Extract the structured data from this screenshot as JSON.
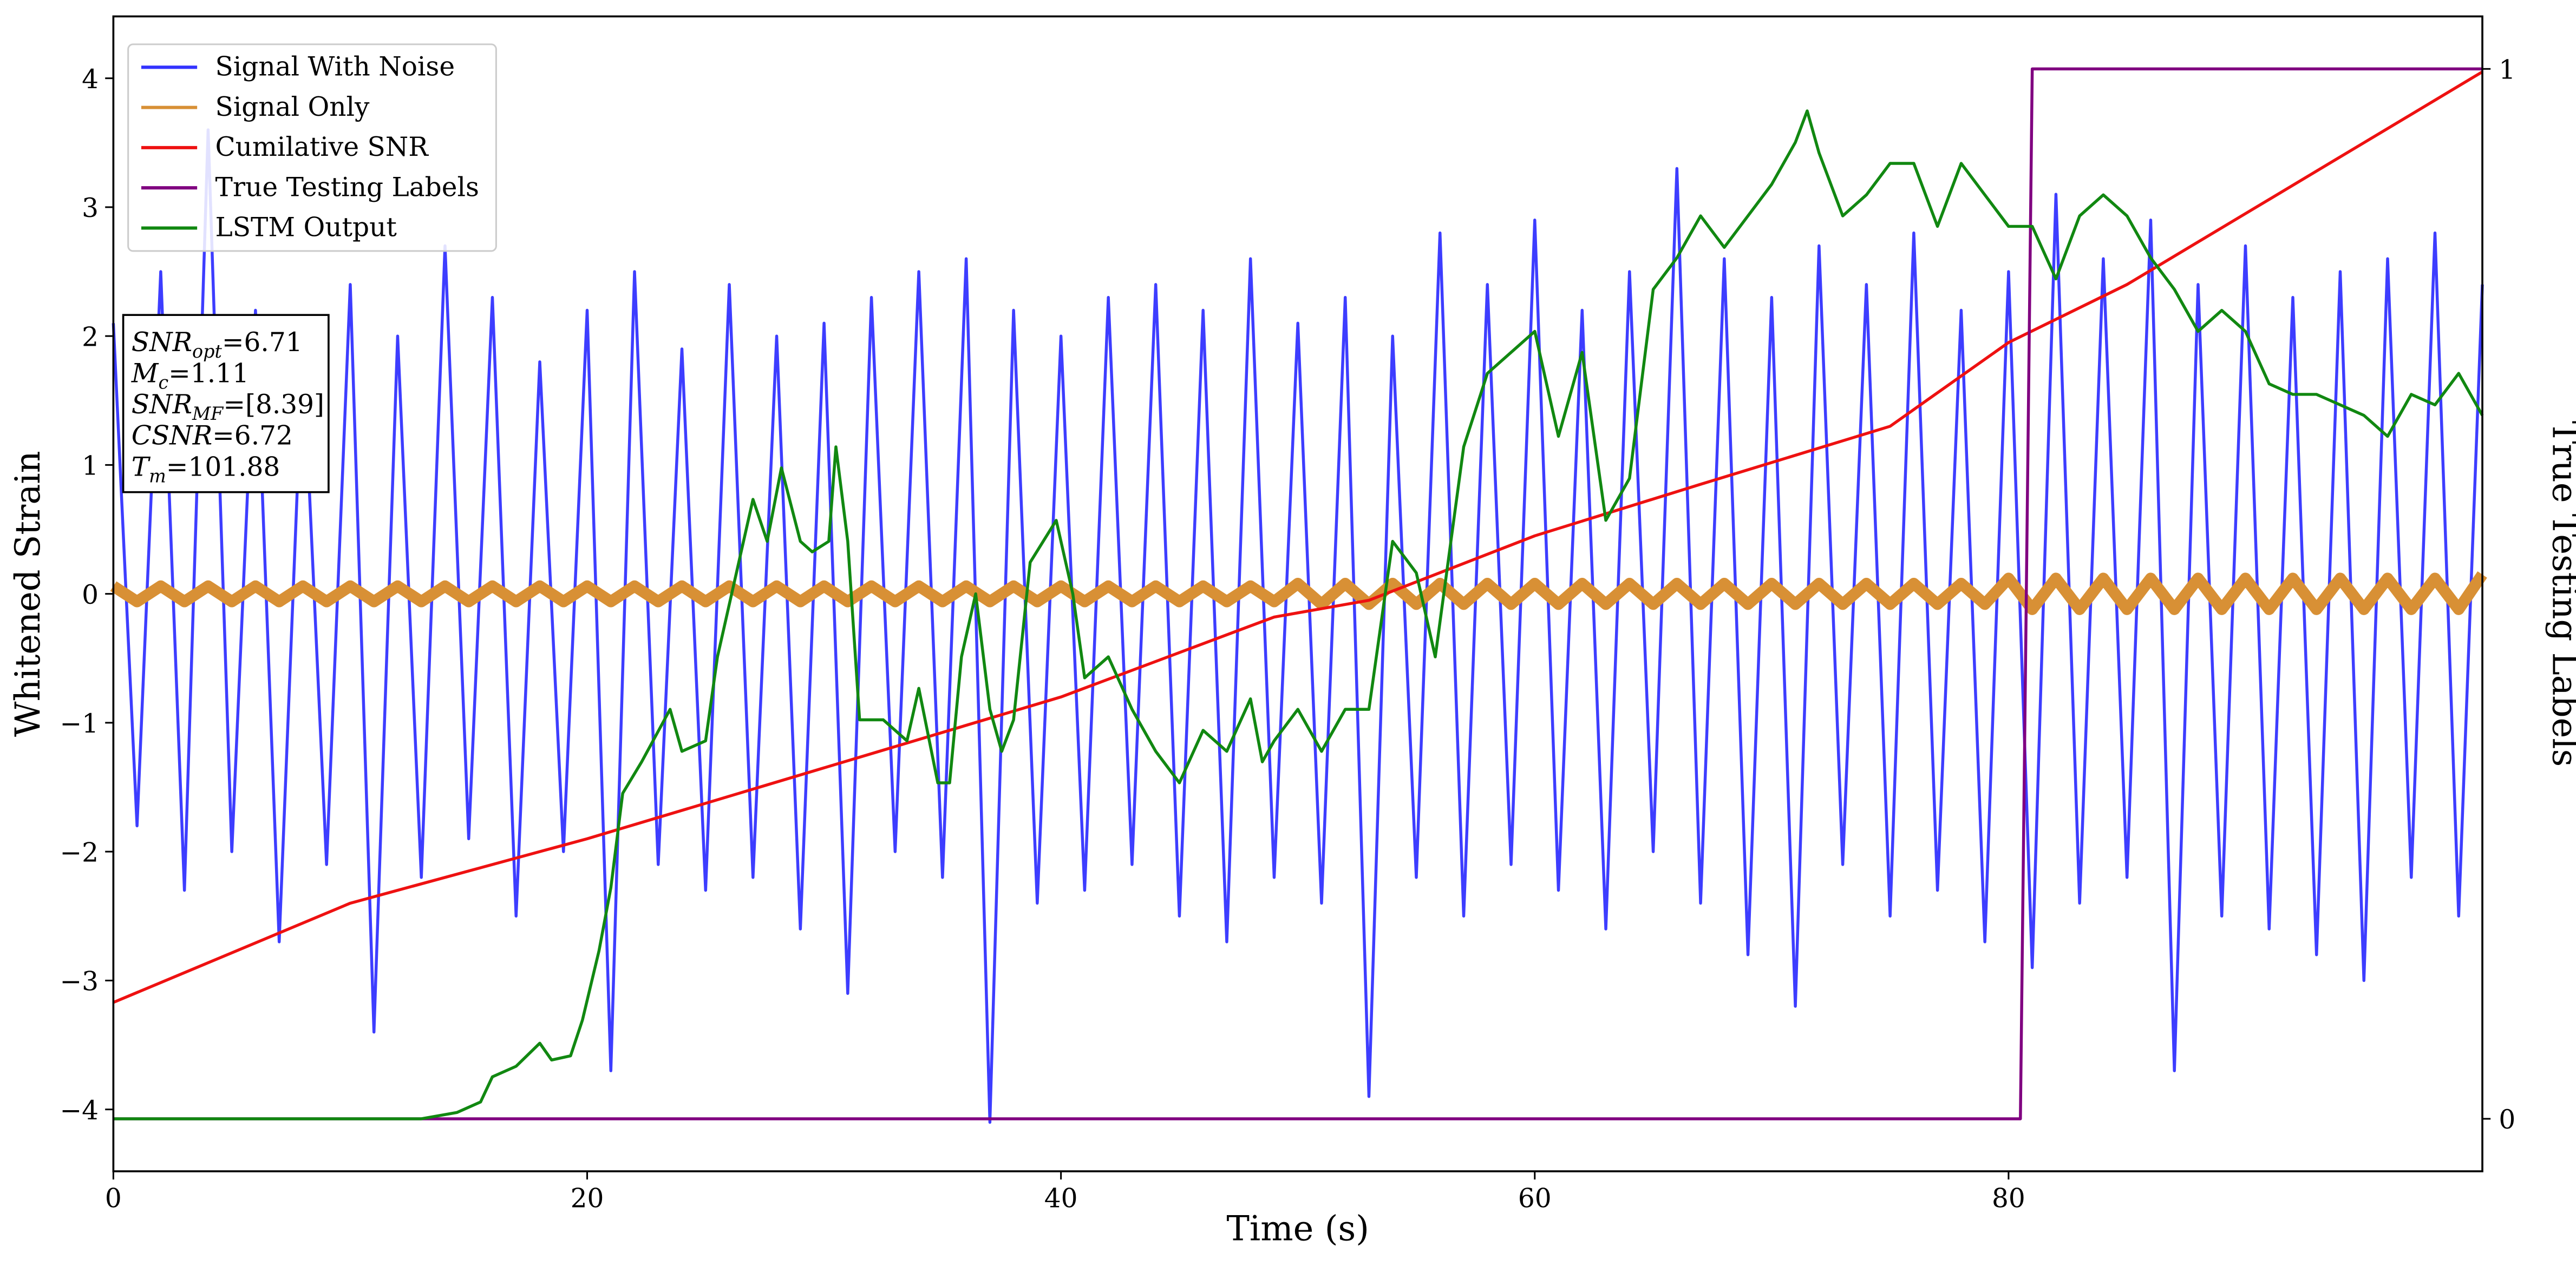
{
  "chart_data": {
    "type": "line",
    "xlabel": "Time (s)",
    "ylabel": "Whitened Strain",
    "y2label": "True Testing Labels",
    "xlim": [
      0,
      100
    ],
    "ylim": [
      -4.48,
      4.48
    ],
    "y2lim": [
      -0.05,
      1.05
    ],
    "xticks": [
      0,
      20,
      40,
      60,
      80
    ],
    "yticks": [
      {
        "value": -4,
        "label": "−4"
      },
      {
        "value": -3,
        "label": "−3"
      },
      {
        "value": -2,
        "label": "−2"
      },
      {
        "value": -1,
        "label": "−1"
      },
      0,
      1,
      2,
      3,
      4
    ],
    "y2ticks": [
      0,
      1
    ],
    "legend": "upper left",
    "series": [
      {
        "name": "Signal With Noise",
        "color": "#3333ff",
        "x": [
          0,
          1,
          2,
          3,
          4,
          5,
          6,
          7,
          8,
          9,
          10,
          11,
          12,
          13,
          14,
          15,
          16,
          17,
          18,
          19,
          20,
          21,
          22,
          23,
          24,
          25,
          26,
          27,
          28,
          29,
          30,
          31,
          32,
          33,
          34,
          35,
          36,
          37,
          38,
          39,
          40,
          41,
          42,
          43,
          44,
          45,
          46,
          47,
          48,
          49,
          50,
          51,
          52,
          53,
          54,
          55,
          56,
          57,
          58,
          59,
          60,
          61,
          62,
          63,
          64,
          65,
          66,
          67,
          68,
          69,
          70,
          71,
          72,
          73,
          74,
          75,
          76,
          77,
          78,
          79,
          80,
          81,
          82,
          83,
          84,
          85,
          86,
          87,
          88,
          89,
          90,
          91,
          92,
          93,
          94,
          95,
          96,
          97,
          98,
          99,
          100
        ],
        "values": [
          2.1,
          -1.8,
          2.5,
          -2.3,
          3.6,
          -2.0,
          2.2,
          -2.7,
          1.9,
          -2.1,
          2.4,
          -3.4,
          2.0,
          -2.2,
          2.7,
          -1.9,
          2.3,
          -2.5,
          1.8,
          -2.0,
          2.2,
          -3.7,
          2.5,
          -2.1,
          1.9,
          -2.3,
          2.4,
          -2.2,
          2.0,
          -2.6,
          2.1,
          -3.1,
          2.3,
          -2.0,
          2.5,
          -2.2,
          2.6,
          -4.1,
          2.2,
          -2.4,
          2.0,
          -2.3,
          2.3,
          -2.1,
          2.4,
          -2.5,
          2.2,
          -2.7,
          2.6,
          -2.2,
          2.1,
          -2.4,
          2.3,
          -3.9,
          2.0,
          -2.2,
          2.8,
          -2.5,
          2.4,
          -2.1,
          2.9,
          -2.3,
          2.2,
          -2.6,
          2.5,
          -2.0,
          3.3,
          -2.4,
          2.6,
          -2.8,
          2.3,
          -3.2,
          2.7,
          -2.1,
          2.4,
          -2.5,
          2.8,
          -2.3,
          2.2,
          -2.7,
          2.5,
          -2.9,
          3.1,
          -2.4,
          2.6,
          -2.2,
          2.9,
          -3.7,
          2.4,
          -2.5,
          2.7,
          -2.6,
          2.3,
          -2.8,
          2.5,
          -3.0,
          2.6,
          -2.2,
          2.8,
          -2.5,
          2.4
        ]
      },
      {
        "name": "Signal Only",
        "color": "#d89035",
        "x": [
          0,
          1,
          2,
          3,
          4,
          5,
          6,
          7,
          8,
          9,
          10,
          11,
          12,
          13,
          14,
          15,
          16,
          17,
          18,
          19,
          20,
          21,
          22,
          23,
          24,
          25,
          26,
          27,
          28,
          29,
          30,
          31,
          32,
          33,
          34,
          35,
          36,
          37,
          38,
          39,
          40,
          41,
          42,
          43,
          44,
          45,
          46,
          47,
          48,
          49,
          50,
          51,
          52,
          53,
          54,
          55,
          56,
          57,
          58,
          59,
          60,
          61,
          62,
          63,
          64,
          65,
          66,
          67,
          68,
          69,
          70,
          71,
          72,
          73,
          74,
          75,
          76,
          77,
          78,
          79,
          80,
          81,
          82,
          83,
          84,
          85,
          86,
          87,
          88,
          89,
          90,
          91,
          92,
          93,
          94,
          95,
          96,
          97,
          98,
          99,
          100
        ],
        "values": [
          0.06,
          -0.06,
          0.06,
          -0.06,
          0.06,
          -0.06,
          0.06,
          -0.06,
          0.06,
          -0.06,
          0.06,
          -0.06,
          0.06,
          -0.06,
          0.06,
          -0.06,
          0.06,
          -0.06,
          0.06,
          -0.06,
          0.06,
          -0.06,
          0.06,
          -0.06,
          0.06,
          -0.06,
          0.06,
          -0.06,
          0.06,
          -0.06,
          0.06,
          -0.06,
          0.06,
          -0.06,
          0.06,
          -0.06,
          0.06,
          -0.06,
          0.06,
          -0.06,
          0.06,
          -0.06,
          0.06,
          -0.06,
          0.06,
          -0.06,
          0.06,
          -0.06,
          0.06,
          -0.06,
          0.08,
          -0.08,
          0.08,
          -0.08,
          0.08,
          -0.08,
          0.08,
          -0.08,
          0.08,
          -0.08,
          0.08,
          -0.08,
          0.08,
          -0.08,
          0.08,
          -0.08,
          0.08,
          -0.08,
          0.08,
          -0.08,
          0.08,
          -0.08,
          0.08,
          -0.08,
          0.08,
          -0.08,
          0.08,
          -0.08,
          0.08,
          -0.08,
          0.12,
          -0.12,
          0.12,
          -0.12,
          0.12,
          -0.12,
          0.12,
          -0.12,
          0.12,
          -0.12,
          0.12,
          -0.12,
          0.12,
          -0.12,
          0.12,
          -0.12,
          0.12,
          -0.12,
          0.12,
          -0.12,
          0.15
        ]
      },
      {
        "name": "Cumilative SNR",
        "color": "#ee1111",
        "x": [
          0,
          10,
          20,
          30,
          40,
          49,
          53,
          60,
          67,
          75,
          80,
          85,
          90,
          95,
          100
        ],
        "values": [
          -3.17,
          -2.4,
          -1.9,
          -1.35,
          -0.8,
          -0.18,
          -0.05,
          0.45,
          0.85,
          1.3,
          1.95,
          2.4,
          2.95,
          3.5,
          4.05
        ]
      },
      {
        "name": "True Testing Labels",
        "color": "#800080",
        "axis": "y2",
        "x": [
          0,
          80.5,
          81,
          100
        ],
        "values": [
          0,
          0,
          1,
          1
        ]
      },
      {
        "name": "LSTM Output",
        "color": "#118811",
        "axis": "y2",
        "x": [
          0,
          13,
          14.5,
          15.5,
          16,
          17,
          18,
          18.5,
          19.3,
          19.8,
          20.5,
          21,
          21.5,
          22.3,
          23.5,
          24,
          25,
          25.5,
          26,
          27,
          27.6,
          28.2,
          29,
          29.5,
          30.2,
          30.5,
          31,
          31.5,
          32.5,
          33.5,
          34,
          34.8,
          35.3,
          35.8,
          36.4,
          37,
          37.5,
          38,
          38.7,
          39.8,
          40.5,
          41,
          42,
          43,
          44,
          45,
          46,
          47,
          48,
          48.5,
          49,
          50,
          51,
          52,
          53,
          54,
          55,
          55.8,
          57,
          58,
          59,
          60,
          61,
          62,
          63,
          64,
          65,
          66,
          67,
          68,
          69,
          70,
          71,
          71.5,
          72,
          73,
          74,
          75,
          76,
          77,
          78,
          79,
          80,
          81,
          82,
          83,
          84,
          85,
          86,
          87,
          88,
          89,
          90,
          91,
          92,
          93,
          94,
          95,
          96,
          97,
          98,
          99,
          100
        ],
        "values": [
          0,
          0,
          0.006,
          0.016,
          0.04,
          0.05,
          0.072,
          0.056,
          0.06,
          0.094,
          0.16,
          0.22,
          0.31,
          0.34,
          0.39,
          0.35,
          0.36,
          0.44,
          0.49,
          0.59,
          0.55,
          0.62,
          0.55,
          0.54,
          0.55,
          0.64,
          0.55,
          0.38,
          0.38,
          0.36,
          0.41,
          0.32,
          0.32,
          0.44,
          0.5,
          0.39,
          0.35,
          0.38,
          0.53,
          0.57,
          0.5,
          0.42,
          0.44,
          0.39,
          0.35,
          0.32,
          0.37,
          0.35,
          0.4,
          0.34,
          0.36,
          0.39,
          0.35,
          0.39,
          0.39,
          0.55,
          0.52,
          0.44,
          0.64,
          0.71,
          0.73,
          0.75,
          0.65,
          0.73,
          0.57,
          0.61,
          0.79,
          0.82,
          0.86,
          0.83,
          0.86,
          0.89,
          0.93,
          0.96,
          0.92,
          0.86,
          0.88,
          0.91,
          0.91,
          0.85,
          0.91,
          0.88,
          0.85,
          0.85,
          0.8,
          0.86,
          0.88,
          0.86,
          0.82,
          0.79,
          0.75,
          0.77,
          0.75,
          0.7,
          0.69,
          0.69,
          0.68,
          0.67,
          0.65,
          0.69,
          0.68,
          0.71,
          0.67
        ]
      }
    ],
    "annotation": [
      {
        "symbol": "SNR",
        "subscript": "opt",
        "text": "=6.71"
      },
      {
        "symbol": "M",
        "subscript": "c",
        "text": "=1.11"
      },
      {
        "symbol": "SNR",
        "subscript": "MF",
        "text": "=[8.39]"
      },
      {
        "symbol": "CSNR",
        "text": "=6.72"
      },
      {
        "symbol": "T",
        "subscript": "m",
        "text": "=101.88"
      }
    ]
  }
}
